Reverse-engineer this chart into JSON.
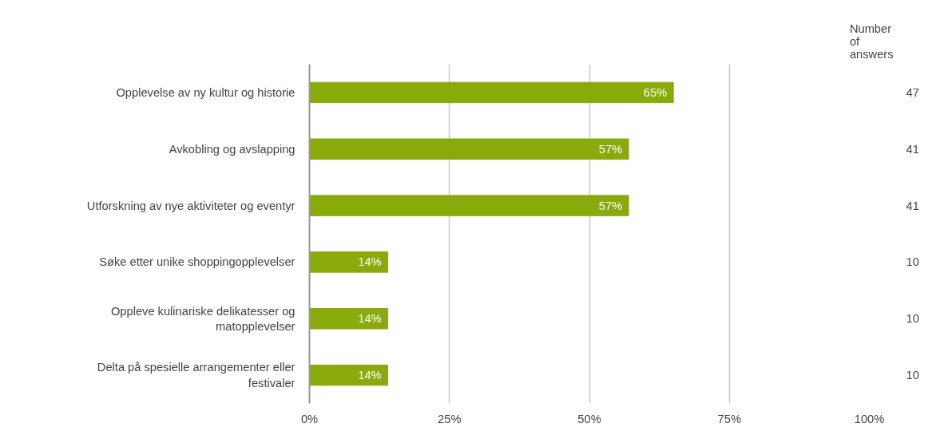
{
  "chart_data": {
    "type": "bar",
    "orientation": "horizontal",
    "categories": [
      "Opplevelse av ny kultur og historie",
      "Avkobling og avslapping",
      "Utforskning av nye aktiviteter og eventyr",
      "Søke etter unike shoppingopplevelser",
      "Oppleve kulinariske delikatesser og matopplevelser",
      "Delta på spesielle arrangementer eller festivaler"
    ],
    "values": [
      65,
      57,
      57,
      14,
      14,
      14
    ],
    "value_labels": [
      "65%",
      "57%",
      "57%",
      "14%",
      "14%",
      "14%"
    ],
    "color": "#8aaa0c",
    "xlim": [
      0,
      100
    ],
    "xticks": [
      {
        "value": 0,
        "label": "0%"
      },
      {
        "value": 25,
        "label": "25%"
      },
      {
        "value": 50,
        "label": "50%"
      },
      {
        "value": 75,
        "label": "75%"
      },
      {
        "value": 100,
        "label": "100%"
      }
    ],
    "grid": "x",
    "annotations": [
      "Number of answers",
      "47",
      "41",
      "41",
      "10",
      "10",
      "10"
    ]
  }
}
